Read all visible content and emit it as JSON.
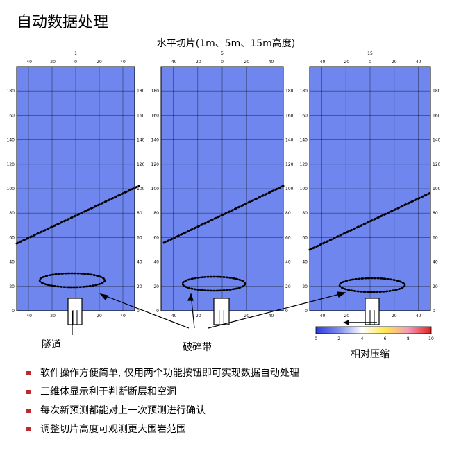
{
  "page": {
    "title": "自动数据处理",
    "subtitle": "水平切片(1m、5m、15m高度)"
  },
  "panels": [
    {
      "slice_label": "1"
    },
    {
      "slice_label": "5"
    },
    {
      "slice_label": "15"
    }
  ],
  "axes": {
    "x_ticks": [
      "-40",
      "-20",
      "0",
      "20",
      "40"
    ],
    "y_ticks": [
      "0",
      "20",
      "40",
      "60",
      "80",
      "100",
      "120",
      "140",
      "160",
      "180"
    ]
  },
  "labels": {
    "tunnel": "隧道",
    "fracture_zone": "破碎带",
    "relative_compression": "相对压缩"
  },
  "colorbar": {
    "ticks": [
      "0",
      "2",
      "4",
      "6",
      "8",
      "10"
    ],
    "colors": [
      "#2a3dd8",
      "#7f8cf0",
      "#ffffff",
      "#ffe84a",
      "#f59ab8",
      "#e52020"
    ]
  },
  "bullets": [
    "软件操作方便简单, 仅用两个功能按钮即可实现数据自动处理",
    "三维体显示利于判断断层和空洞",
    "每次新预测都能对上一次预测进行确认",
    "调整切片高度可观测更大围岩范围"
  ]
}
